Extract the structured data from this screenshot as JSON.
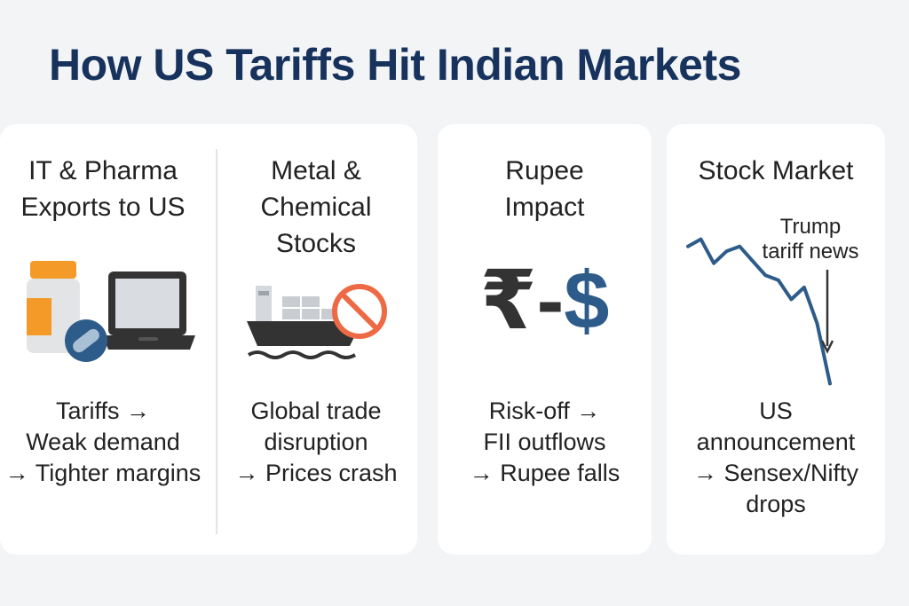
{
  "title": "How US Tariffs Hit Indian Markets",
  "colors": {
    "title": "#17335d",
    "orange": "#f39a29",
    "navy": "#2e5c8a",
    "dark": "#333333",
    "prohibit": "#ee6a45"
  },
  "panels": [
    {
      "heading": [
        "IT & Pharma",
        "Exports to US"
      ],
      "icons": [
        "pill-bottle-icon",
        "pill-icon",
        "laptop-icon"
      ],
      "body": [
        "Tariffs →",
        "Weak demand",
        "→ Tighter margins"
      ]
    },
    {
      "heading": [
        "Metal &",
        "Chemical",
        "Stocks"
      ],
      "icons": [
        "cargo-ship-icon",
        "prohibited-icon"
      ],
      "body": [
        "Global trade",
        "disruption",
        "→ Prices crash"
      ]
    },
    {
      "heading": [
        "Rupee",
        "Impact"
      ],
      "currency": {
        "rupee": "₹",
        "dash": "-",
        "dollar": "$"
      },
      "body": [
        "Risk-off →",
        "FII outflows",
        "→ Rupee falls"
      ]
    },
    {
      "heading": [
        "Stock Market"
      ],
      "annotation": [
        "Trump",
        "tariff news"
      ],
      "chart_data": {
        "type": "line",
        "title": "",
        "xlabel": "",
        "ylabel": "",
        "x": [
          0,
          1,
          2,
          3,
          4,
          5,
          6,
          7,
          8,
          9,
          10,
          11
        ],
        "values": [
          97,
          100,
          90,
          95,
          97,
          91,
          85,
          83,
          75,
          80,
          65,
          40
        ],
        "ylim": [
          35,
          105
        ],
        "grid": false
      },
      "body": [
        "US",
        "announcement",
        "→ Sensex/Nifty",
        "drops"
      ]
    }
  ]
}
